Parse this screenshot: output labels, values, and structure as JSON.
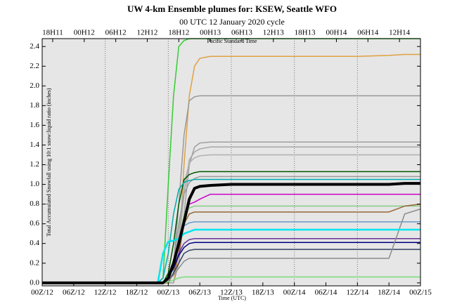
{
  "chart_data": {
    "type": "line",
    "title": "UW 4-km Ensemble plumes for: KSEW, Seattle WFO",
    "subtitle": "00 UTC 12 January 2020 cycle",
    "ylabel": "Total Accumulated Snowfall using 10:1 snow:liquid ratio (inches)",
    "xlabel": "Time (UTC)",
    "top_axis": {
      "label": "Pacific Standard Time",
      "ticks": [
        {
          "value": 2,
          "label": "18H11"
        },
        {
          "value": 8,
          "label": "00H12"
        },
        {
          "value": 14,
          "label": "06H12"
        },
        {
          "value": 20,
          "label": "12H12"
        },
        {
          "value": 26,
          "label": "18H12"
        },
        {
          "value": 32,
          "label": "00H13"
        },
        {
          "value": 38,
          "label": "06H13"
        },
        {
          "value": 44,
          "label": "12H13"
        },
        {
          "value": 50,
          "label": "18H13"
        },
        {
          "value": 56,
          "label": "00H14"
        },
        {
          "value": 62,
          "label": "06H14"
        },
        {
          "value": 68,
          "label": "12H14"
        }
      ]
    },
    "xlim": [
      0,
      72
    ],
    "xticks": [
      {
        "value": 0,
        "label": "00Z/12"
      },
      {
        "value": 6,
        "label": "06Z/12"
      },
      {
        "value": 12,
        "label": "12Z/12"
      },
      {
        "value": 18,
        "label": "18Z/12"
      },
      {
        "value": 24,
        "label": "00Z/13"
      },
      {
        "value": 30,
        "label": "06Z/13"
      },
      {
        "value": 36,
        "label": "12Z/13"
      },
      {
        "value": 42,
        "label": "18Z/13"
      },
      {
        "value": 48,
        "label": "00Z/14"
      },
      {
        "value": 54,
        "label": "06Z/14"
      },
      {
        "value": 60,
        "label": "12Z/14"
      },
      {
        "value": 66,
        "label": "18Z/14"
      },
      {
        "value": 72,
        "label": "00Z/15"
      }
    ],
    "ylim": [
      -0.03,
      2.48
    ],
    "yticks": [
      {
        "value": 0,
        "label": "0.0"
      },
      0.2,
      0.4,
      0.6,
      0.8,
      {
        "value": 1,
        "label": "1.0"
      },
      1.2,
      1.4,
      1.6,
      1.8,
      {
        "value": 2,
        "label": "2.0"
      },
      2.2,
      2.4
    ],
    "grid": "x",
    "background": "#e6e6e6",
    "x": [
      0,
      22,
      23,
      24,
      25,
      26,
      27,
      28,
      29,
      30,
      32,
      36,
      48,
      60,
      66,
      69,
      72
    ],
    "series": [
      {
        "color": "#33cc33",
        "width": 1.5,
        "values": [
          0,
          0,
          0.05,
          1.0,
          1.9,
          2.4,
          2.46,
          2.48,
          2.48,
          2.48,
          2.48,
          2.48,
          2.48,
          2.48,
          2.48,
          2.48,
          2.48
        ]
      },
      {
        "color": "#e0a040",
        "width": 1.5,
        "values": [
          0,
          0,
          0,
          0,
          0,
          0.3,
          1.2,
          1.9,
          2.2,
          2.28,
          2.3,
          2.3,
          2.3,
          2.3,
          2.31,
          2.32,
          2.32
        ]
      },
      {
        "color": "#999999",
        "width": 1.5,
        "values": [
          0,
          0,
          0,
          0,
          0.2,
          0.8,
          1.5,
          1.85,
          1.89,
          1.9,
          1.9,
          1.9,
          1.9,
          1.9,
          1.9,
          1.9,
          1.9
        ]
      },
      {
        "color": "#a0a0a0",
        "width": 1.5,
        "values": [
          0,
          0,
          0,
          0,
          0,
          0.2,
          0.7,
          1.2,
          1.38,
          1.42,
          1.43,
          1.43,
          1.43,
          1.43,
          1.43,
          1.43,
          1.43
        ]
      },
      {
        "color": "#a8a8a8",
        "width": 1.5,
        "values": [
          0,
          0,
          0,
          0,
          0.1,
          0.4,
          0.9,
          1.25,
          1.33,
          1.36,
          1.38,
          1.38,
          1.38,
          1.38,
          1.38,
          1.38,
          1.38
        ]
      },
      {
        "color": "#b0b0b0",
        "width": 1.5,
        "values": [
          0,
          0,
          0,
          0,
          0.1,
          0.5,
          1.0,
          1.22,
          1.27,
          1.29,
          1.3,
          1.3,
          1.3,
          1.3,
          1.3,
          1.3,
          1.3
        ]
      },
      {
        "color": "#005500",
        "width": 1.5,
        "values": [
          0,
          0,
          0,
          0.1,
          0.4,
          0.8,
          1.05,
          1.1,
          1.12,
          1.13,
          1.13,
          1.13,
          1.13,
          1.13,
          1.13,
          1.13,
          1.13
        ]
      },
      {
        "color": "#9a9a9a",
        "width": 1.5,
        "values": [
          0,
          0,
          0,
          0,
          0.2,
          0.6,
          0.9,
          1.02,
          1.06,
          1.08,
          1.08,
          1.08,
          1.08,
          1.08,
          1.08,
          1.08,
          1.08
        ]
      },
      {
        "color": "#00aaaa",
        "width": 1.5,
        "values": [
          0,
          0,
          0.05,
          0.3,
          0.7,
          0.95,
          1.02,
          1.04,
          1.05,
          1.05,
          1.05,
          1.05,
          1.05,
          1.05,
          1.05,
          1.05,
          1.05
        ]
      },
      {
        "color": "#cc00cc",
        "width": 1.5,
        "values": [
          0,
          0,
          0,
          0,
          0.1,
          0.3,
          0.6,
          0.8,
          0.82,
          0.85,
          0.9,
          0.9,
          0.9,
          0.9,
          0.9,
          0.9,
          0.9
        ]
      },
      {
        "color": "#88cc88",
        "width": 1.5,
        "values": [
          0,
          0,
          0,
          0,
          0.1,
          0.4,
          0.7,
          0.76,
          0.78,
          0.78,
          0.78,
          0.78,
          0.78,
          0.78,
          0.78,
          0.78,
          0.78
        ]
      },
      {
        "color": "#996633",
        "width": 1.5,
        "values": [
          0,
          0,
          0,
          0,
          0.1,
          0.3,
          0.6,
          0.7,
          0.72,
          0.72,
          0.72,
          0.72,
          0.72,
          0.72,
          0.72,
          0.78,
          0.8
        ]
      },
      {
        "color": "#6699cc",
        "width": 1.5,
        "values": [
          0,
          0,
          0,
          0.05,
          0.2,
          0.45,
          0.58,
          0.61,
          0.62,
          0.62,
          0.62,
          0.62,
          0.62,
          0.62,
          0.62,
          0.62,
          0.62
        ]
      },
      {
        "color": "#663399",
        "width": 1.5,
        "values": [
          0,
          0,
          0,
          0.05,
          0.15,
          0.3,
          0.4,
          0.44,
          0.45,
          0.45,
          0.45,
          0.45,
          0.45,
          0.45,
          0.45,
          0.45,
          0.45
        ]
      },
      {
        "color": "#000080",
        "width": 1.5,
        "values": [
          0,
          0,
          0,
          0.05,
          0.15,
          0.28,
          0.36,
          0.4,
          0.41,
          0.41,
          0.41,
          0.41,
          0.41,
          0.41,
          0.41,
          0.41,
          0.41
        ]
      },
      {
        "color": "#334466",
        "width": 1.5,
        "values": [
          0,
          0,
          0,
          0.02,
          0.1,
          0.2,
          0.3,
          0.33,
          0.34,
          0.34,
          0.34,
          0.34,
          0.34,
          0.34,
          0.34,
          0.34,
          0.34
        ]
      },
      {
        "color": "#8c8c8c",
        "width": 1.5,
        "values": [
          0,
          0,
          0,
          0.02,
          0.08,
          0.15,
          0.22,
          0.25,
          0.25,
          0.25,
          0.25,
          0.25,
          0.25,
          0.25,
          0.25,
          0.7,
          0.75
        ]
      },
      {
        "color": "#77dd77",
        "width": 1.5,
        "values": [
          0,
          0,
          0,
          0.01,
          0.03,
          0.05,
          0.06,
          0.06,
          0.06,
          0.06,
          0.06,
          0.06,
          0.06,
          0.06,
          0.06,
          0.06,
          0.06
        ]
      },
      {
        "color": "#00e5ee",
        "width": 2.5,
        "values": [
          0,
          0,
          0.3,
          0.42,
          0.43,
          0.45,
          0.5,
          0.52,
          0.54,
          0.54,
          0.54,
          0.54,
          0.54,
          0.54,
          0.54,
          0.54,
          0.54
        ]
      },
      {
        "color": "#000000",
        "width": 4,
        "values": [
          0,
          0,
          0,
          0.05,
          0.2,
          0.4,
          0.62,
          0.85,
          0.96,
          0.98,
          0.99,
          1.0,
          1.0,
          1.0,
          1.0,
          1.01,
          1.01
        ]
      }
    ]
  }
}
